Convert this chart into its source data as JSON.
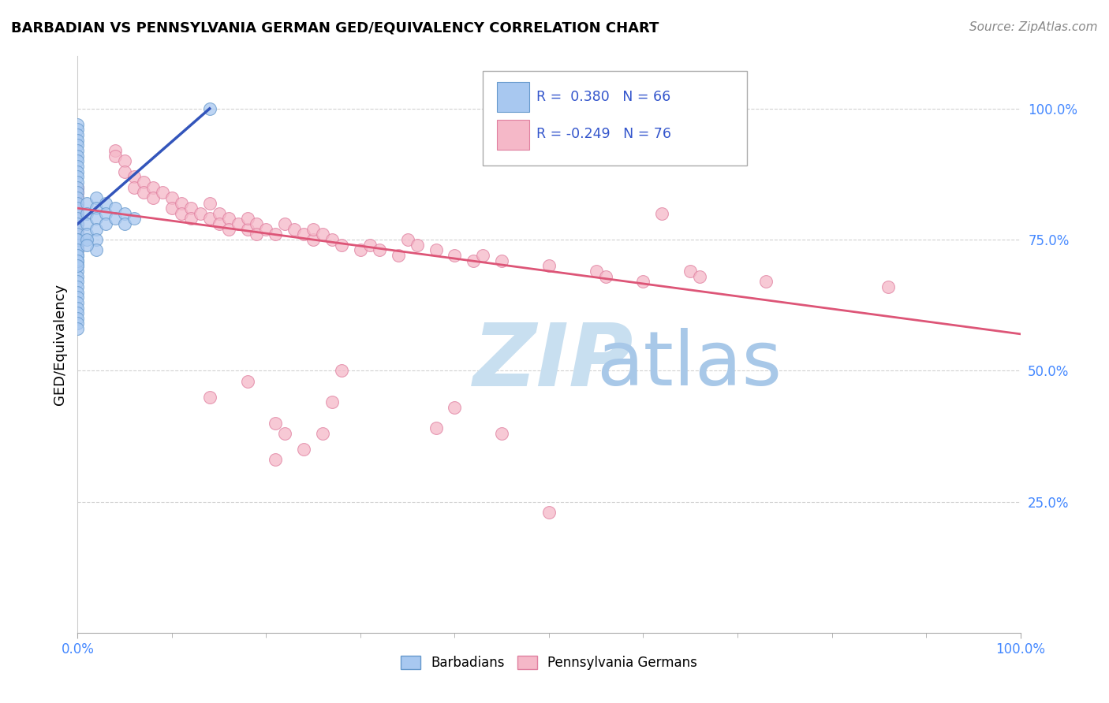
{
  "title": "BARBADIAN VS PENNSYLVANIA GERMAN GED/EQUIVALENCY CORRELATION CHART",
  "source_text": "Source: ZipAtlas.com",
  "ylabel": "GED/Equivalency",
  "xmin": 0.0,
  "xmax": 1.0,
  "ymin": 0.0,
  "ymax": 1.1,
  "x_tick_positions": [
    0.0,
    1.0
  ],
  "x_tick_labels": [
    "0.0%",
    "100.0%"
  ],
  "y_tick_positions": [
    0.25,
    0.5,
    0.75,
    1.0
  ],
  "y_tick_labels": [
    "25.0%",
    "50.0%",
    "75.0%",
    "100.0%"
  ],
  "blue_color": "#a8c8f0",
  "blue_edge_color": "#6699cc",
  "pink_color": "#f5b8c8",
  "pink_edge_color": "#e080a0",
  "blue_line_color": "#3355bb",
  "pink_line_color": "#dd5577",
  "watermark_zip_color": "#c8dff0",
  "watermark_atlas_color": "#a8c8e8",
  "blue_scatter": [
    [
      0.0,
      0.97
    ],
    [
      0.0,
      0.96
    ],
    [
      0.0,
      0.95
    ],
    [
      0.0,
      0.94
    ],
    [
      0.0,
      0.93
    ],
    [
      0.0,
      0.92
    ],
    [
      0.0,
      0.91
    ],
    [
      0.0,
      0.9
    ],
    [
      0.0,
      0.89
    ],
    [
      0.0,
      0.88
    ],
    [
      0.0,
      0.87
    ],
    [
      0.0,
      0.86
    ],
    [
      0.0,
      0.85
    ],
    [
      0.0,
      0.84
    ],
    [
      0.0,
      0.83
    ],
    [
      0.0,
      0.82
    ],
    [
      0.0,
      0.81
    ],
    [
      0.0,
      0.8
    ],
    [
      0.0,
      0.79
    ],
    [
      0.0,
      0.78
    ],
    [
      0.0,
      0.77
    ],
    [
      0.0,
      0.76
    ],
    [
      0.0,
      0.75
    ],
    [
      0.0,
      0.74
    ],
    [
      0.0,
      0.73
    ],
    [
      0.0,
      0.72
    ],
    [
      0.0,
      0.71
    ],
    [
      0.0,
      0.7
    ],
    [
      0.0,
      0.69
    ],
    [
      0.0,
      0.68
    ],
    [
      0.0,
      0.67
    ],
    [
      0.0,
      0.66
    ],
    [
      0.0,
      0.65
    ],
    [
      0.0,
      0.64
    ],
    [
      0.0,
      0.63
    ],
    [
      0.0,
      0.62
    ],
    [
      0.0,
      0.61
    ],
    [
      0.0,
      0.6
    ],
    [
      0.0,
      0.59
    ],
    [
      0.0,
      0.58
    ],
    [
      0.01,
      0.82
    ],
    [
      0.01,
      0.8
    ],
    [
      0.01,
      0.78
    ],
    [
      0.01,
      0.76
    ],
    [
      0.02,
      0.83
    ],
    [
      0.02,
      0.81
    ],
    [
      0.02,
      0.79
    ],
    [
      0.02,
      0.77
    ],
    [
      0.03,
      0.82
    ],
    [
      0.03,
      0.8
    ],
    [
      0.03,
      0.78
    ],
    [
      0.04,
      0.81
    ],
    [
      0.04,
      0.79
    ],
    [
      0.05,
      0.8
    ],
    [
      0.05,
      0.78
    ],
    [
      0.06,
      0.79
    ],
    [
      0.0,
      0.75
    ],
    [
      0.0,
      0.73
    ],
    [
      0.0,
      0.72
    ],
    [
      0.14,
      1.0
    ],
    [
      0.0,
      0.71
    ],
    [
      0.0,
      0.7
    ],
    [
      0.02,
      0.75
    ],
    [
      0.02,
      0.73
    ],
    [
      0.01,
      0.75
    ],
    [
      0.01,
      0.74
    ]
  ],
  "pink_scatter": [
    [
      0.0,
      0.85
    ],
    [
      0.0,
      0.84
    ],
    [
      0.0,
      0.83
    ],
    [
      0.0,
      0.82
    ],
    [
      0.0,
      0.81
    ],
    [
      0.0,
      0.8
    ],
    [
      0.0,
      0.79
    ],
    [
      0.0,
      0.78
    ],
    [
      0.0,
      0.77
    ],
    [
      0.0,
      0.76
    ],
    [
      0.0,
      0.75
    ],
    [
      0.0,
      0.74
    ],
    [
      0.0,
      0.73
    ],
    [
      0.04,
      0.92
    ],
    [
      0.04,
      0.91
    ],
    [
      0.05,
      0.9
    ],
    [
      0.05,
      0.88
    ],
    [
      0.06,
      0.87
    ],
    [
      0.06,
      0.85
    ],
    [
      0.07,
      0.86
    ],
    [
      0.07,
      0.84
    ],
    [
      0.08,
      0.85
    ],
    [
      0.08,
      0.83
    ],
    [
      0.09,
      0.84
    ],
    [
      0.1,
      0.83
    ],
    [
      0.1,
      0.81
    ],
    [
      0.11,
      0.82
    ],
    [
      0.11,
      0.8
    ],
    [
      0.12,
      0.81
    ],
    [
      0.12,
      0.79
    ],
    [
      0.13,
      0.8
    ],
    [
      0.14,
      0.79
    ],
    [
      0.14,
      0.82
    ],
    [
      0.15,
      0.8
    ],
    [
      0.15,
      0.78
    ],
    [
      0.16,
      0.79
    ],
    [
      0.16,
      0.77
    ],
    [
      0.17,
      0.78
    ],
    [
      0.18,
      0.77
    ],
    [
      0.18,
      0.79
    ],
    [
      0.19,
      0.78
    ],
    [
      0.19,
      0.76
    ],
    [
      0.2,
      0.77
    ],
    [
      0.21,
      0.76
    ],
    [
      0.22,
      0.78
    ],
    [
      0.23,
      0.77
    ],
    [
      0.24,
      0.76
    ],
    [
      0.25,
      0.75
    ],
    [
      0.25,
      0.77
    ],
    [
      0.26,
      0.76
    ],
    [
      0.27,
      0.75
    ],
    [
      0.28,
      0.74
    ],
    [
      0.3,
      0.73
    ],
    [
      0.31,
      0.74
    ],
    [
      0.32,
      0.73
    ],
    [
      0.34,
      0.72
    ],
    [
      0.35,
      0.75
    ],
    [
      0.36,
      0.74
    ],
    [
      0.38,
      0.73
    ],
    [
      0.4,
      0.72
    ],
    [
      0.42,
      0.71
    ],
    [
      0.43,
      0.72
    ],
    [
      0.45,
      0.71
    ],
    [
      0.5,
      0.7
    ],
    [
      0.55,
      0.69
    ],
    [
      0.56,
      0.68
    ],
    [
      0.6,
      0.67
    ],
    [
      0.62,
      0.8
    ],
    [
      0.65,
      0.69
    ],
    [
      0.66,
      0.68
    ],
    [
      0.73,
      0.67
    ],
    [
      0.86,
      0.66
    ],
    [
      0.4,
      0.43
    ],
    [
      0.38,
      0.39
    ],
    [
      0.45,
      0.38
    ],
    [
      0.5,
      0.23
    ],
    [
      0.21,
      0.4
    ],
    [
      0.21,
      0.33
    ],
    [
      0.22,
      0.38
    ],
    [
      0.24,
      0.35
    ],
    [
      0.26,
      0.38
    ],
    [
      0.27,
      0.44
    ],
    [
      0.28,
      0.5
    ],
    [
      0.18,
      0.48
    ],
    [
      0.14,
      0.45
    ]
  ],
  "blue_line": {
    "x0": 0.0,
    "y0": 0.78,
    "x1": 0.14,
    "y1": 1.0
  },
  "pink_line": {
    "x0": 0.0,
    "y0": 0.81,
    "x1": 1.0,
    "y1": 0.57
  }
}
